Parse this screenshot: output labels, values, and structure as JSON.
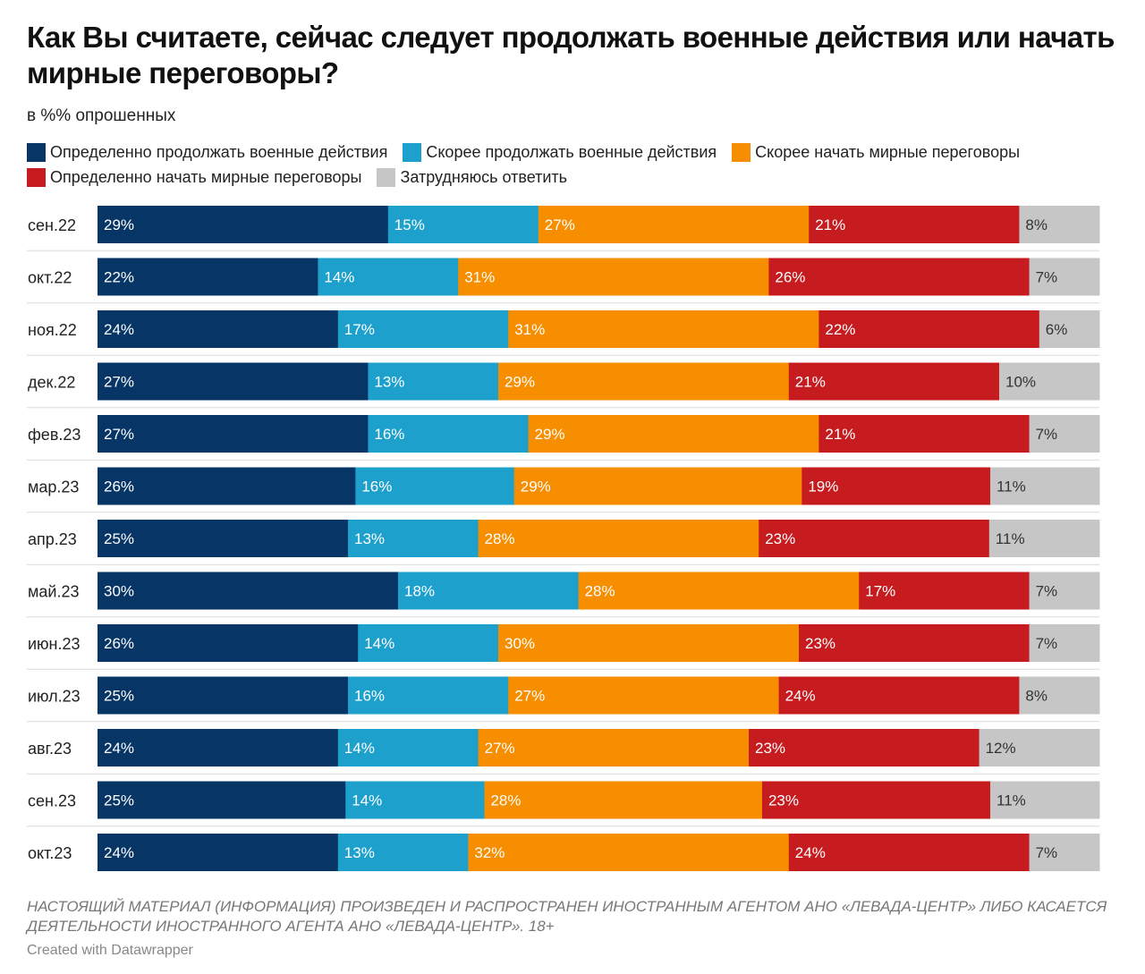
{
  "title": "Как Вы считаете, сейчас следует продолжать военные действия или начать мирные переговоры?",
  "subtitle": "в %% опрошенных",
  "footnote": "НАСТОЯЩИЙ МАТЕРИАЛ (ИНФОРМАЦИЯ) ПРОИЗВЕДЕН И РАСПРОСТРАНЕН ИНОСТРАННЫМ АГЕНТОМ АНО «ЛЕВАДА-ЦЕНТР» ЛИБО КАСАЕТСЯ ДЕЯТЕЛЬНОСТИ ИНОСТРАННОГО АГЕНТА АНО «ЛЕВАДА-ЦЕНТР». 18+",
  "credit": "Created with Datawrapper",
  "chart_data": {
    "type": "bar",
    "orientation": "horizontal",
    "stacked": true,
    "value_suffix": "%",
    "legend_position": "top",
    "categories": [
      "сен.22",
      "окт.22",
      "ноя.22",
      "дек.22",
      "фев.23",
      "мар.23",
      "апр.23",
      "май.23",
      "июн.23",
      "июл.23",
      "авг.23",
      "сен.23",
      "окт.23"
    ],
    "series": [
      {
        "name": "Определенно продолжать военные действия",
        "color": "#063566",
        "label_color": "#ffffff",
        "values": [
          29,
          22,
          24,
          27,
          27,
          26,
          25,
          30,
          26,
          25,
          24,
          25,
          24
        ]
      },
      {
        "name": "Скорее продолжать военные действия",
        "color": "#1ea0cc",
        "label_color": "#ffffff",
        "values": [
          15,
          14,
          17,
          13,
          16,
          16,
          13,
          18,
          14,
          16,
          14,
          14,
          13
        ]
      },
      {
        "name": "Скорее начать мирные переговоры",
        "color": "#f68e00",
        "label_color": "#ffffff",
        "values": [
          27,
          31,
          31,
          29,
          29,
          29,
          28,
          28,
          30,
          27,
          27,
          28,
          32
        ]
      },
      {
        "name": "Определенно начать мирные переговоры",
        "color": "#c61c1f",
        "label_color": "#ffffff",
        "values": [
          21,
          26,
          22,
          21,
          21,
          19,
          23,
          17,
          23,
          24,
          23,
          23,
          24
        ]
      },
      {
        "name": "Затрудняюсь ответить",
        "color": "#c6c6c6",
        "label_color": "#333333",
        "values": [
          8,
          7,
          6,
          10,
          7,
          11,
          11,
          7,
          7,
          8,
          12,
          11,
          7
        ]
      }
    ]
  }
}
